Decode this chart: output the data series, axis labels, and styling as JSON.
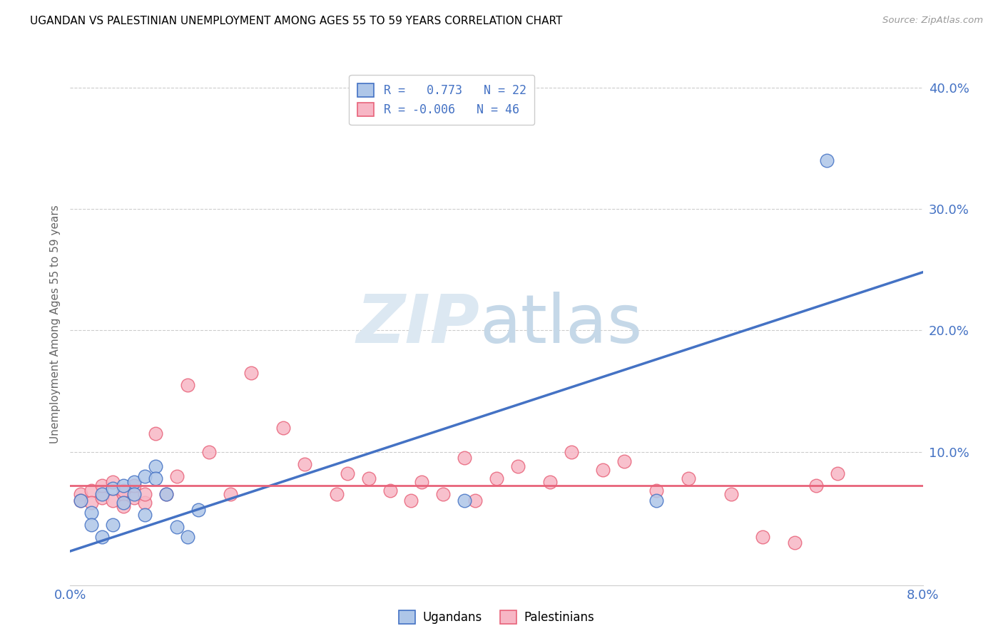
{
  "title": "UGANDAN VS PALESTINIAN UNEMPLOYMENT AMONG AGES 55 TO 59 YEARS CORRELATION CHART",
  "source": "Source: ZipAtlas.com",
  "ylabel": "Unemployment Among Ages 55 to 59 years",
  "xlim": [
    0.0,
    0.08
  ],
  "ylim": [
    -0.01,
    0.42
  ],
  "yticks": [
    0.0,
    0.1,
    0.2,
    0.3,
    0.4
  ],
  "ytick_labels": [
    "",
    "10.0%",
    "20.0%",
    "30.0%",
    "40.0%"
  ],
  "ugandan_color": "#aec6e8",
  "palestinian_color": "#f7b6c5",
  "ugandan_line_color": "#4472c4",
  "palestinian_line_color": "#e8637a",
  "legend_ugandan_label": "R =   0.773   N = 22",
  "legend_palestinian_label": "R = -0.006   N = 46",
  "ugandan_scatter_x": [
    0.001,
    0.002,
    0.002,
    0.003,
    0.003,
    0.004,
    0.004,
    0.005,
    0.005,
    0.006,
    0.006,
    0.007,
    0.007,
    0.008,
    0.008,
    0.009,
    0.01,
    0.011,
    0.012,
    0.037,
    0.055,
    0.071
  ],
  "ugandan_scatter_y": [
    0.06,
    0.05,
    0.04,
    0.065,
    0.03,
    0.07,
    0.04,
    0.072,
    0.058,
    0.075,
    0.065,
    0.08,
    0.048,
    0.088,
    0.078,
    0.065,
    0.038,
    0.03,
    0.052,
    0.06,
    0.06,
    0.34
  ],
  "ugandan_line_x": [
    0.0,
    0.08
  ],
  "ugandan_line_y": [
    0.018,
    0.248
  ],
  "palestinian_scatter_x": [
    0.001,
    0.001,
    0.002,
    0.002,
    0.003,
    0.003,
    0.004,
    0.004,
    0.005,
    0.005,
    0.005,
    0.006,
    0.006,
    0.007,
    0.007,
    0.008,
    0.009,
    0.01,
    0.011,
    0.013,
    0.015,
    0.017,
    0.02,
    0.022,
    0.025,
    0.026,
    0.028,
    0.03,
    0.032,
    0.033,
    0.035,
    0.037,
    0.038,
    0.04,
    0.042,
    0.045,
    0.047,
    0.05,
    0.052,
    0.055,
    0.058,
    0.062,
    0.065,
    0.068,
    0.07,
    0.072
  ],
  "palestinian_scatter_y": [
    0.065,
    0.06,
    0.068,
    0.058,
    0.062,
    0.072,
    0.06,
    0.075,
    0.065,
    0.068,
    0.055,
    0.062,
    0.072,
    0.058,
    0.065,
    0.115,
    0.065,
    0.08,
    0.155,
    0.1,
    0.065,
    0.165,
    0.12,
    0.09,
    0.065,
    0.082,
    0.078,
    0.068,
    0.06,
    0.075,
    0.065,
    0.095,
    0.06,
    0.078,
    0.088,
    0.075,
    0.1,
    0.085,
    0.092,
    0.068,
    0.078,
    0.065,
    0.03,
    0.025,
    0.072,
    0.082
  ],
  "palestinian_line_x": [
    0.0,
    0.08
  ],
  "palestinian_line_y": [
    0.072,
    0.072
  ]
}
